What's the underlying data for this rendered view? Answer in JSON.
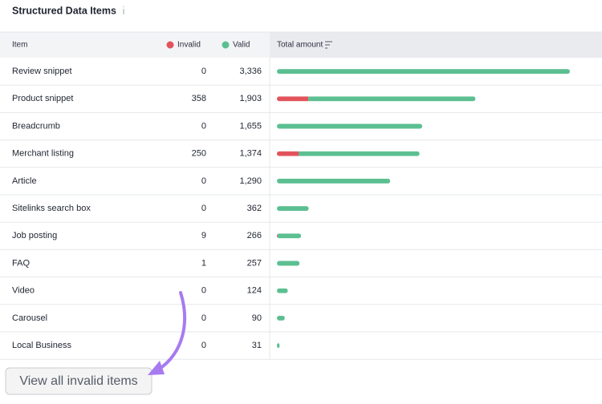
{
  "header": {
    "title": "Structured Data Items"
  },
  "table": {
    "columns": [
      "Item",
      "Invalid",
      "Valid",
      "Total amount"
    ],
    "colors": {
      "invalid": "#e2545c",
      "valid": "#5cbf92"
    },
    "rows": [
      {
        "item": "Review snippet",
        "invalid": 0,
        "valid": {
          "value": 3336,
          "label": "3,336"
        }
      },
      {
        "item": "Product snippet",
        "invalid": 358,
        "valid": {
          "value": 1903,
          "label": "1,903"
        }
      },
      {
        "item": "Breadcrumb",
        "invalid": 0,
        "valid": {
          "value": 1655,
          "label": "1,655"
        }
      },
      {
        "item": "Merchant listing",
        "invalid": 250,
        "valid": {
          "value": 1374,
          "label": "1,374"
        }
      },
      {
        "item": "Article",
        "invalid": 0,
        "valid": {
          "value": 1290,
          "label": "1,290"
        }
      },
      {
        "item": "Sitelinks search box",
        "invalid": 0,
        "valid": 362
      },
      {
        "item": "Job posting",
        "invalid": 9,
        "valid": 266
      },
      {
        "item": "FAQ",
        "invalid": 1,
        "valid": 257
      },
      {
        "item": "Video",
        "invalid": 0,
        "valid": 124
      },
      {
        "item": "Carousel",
        "invalid": 0,
        "valid": 90
      },
      {
        "item": "Local Business",
        "invalid": 0,
        "valid": 31
      }
    ]
  },
  "button": {
    "label": "View all invalid items"
  }
}
